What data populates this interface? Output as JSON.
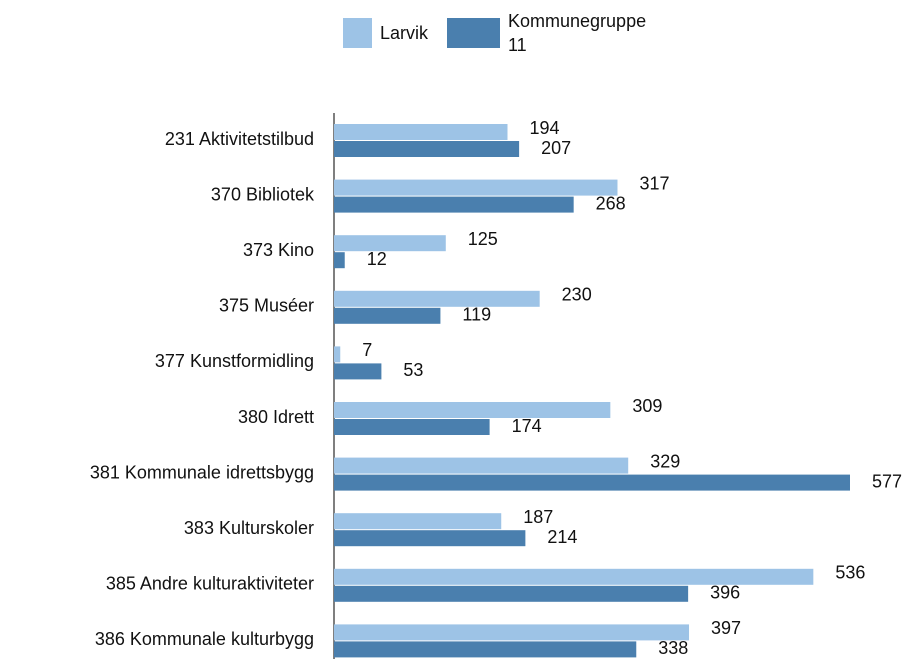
{
  "chart_data": {
    "type": "bar",
    "orientation": "horizontal",
    "categories": [
      "231 Aktivitetstilbud",
      "370 Bibliotek",
      "373 Kino",
      "375 Muséer",
      "377 Kunstformidling",
      "380 Idrett",
      "381 Kommunale idrettsbygg",
      "383 Kulturskoler",
      "385 Andre kulturaktiviteter",
      "386 Kommunale kulturbygg"
    ],
    "series": [
      {
        "name": "Larvik",
        "color": "#9dc3e6",
        "values": [
          194,
          317,
          125,
          230,
          7,
          309,
          329,
          187,
          536,
          397
        ]
      },
      {
        "name": "Kommunegruppe 11",
        "color": "#4a7fae",
        "values": [
          207,
          268,
          12,
          119,
          53,
          174,
          577,
          214,
          396,
          338
        ]
      }
    ],
    "legend": "top"
  }
}
